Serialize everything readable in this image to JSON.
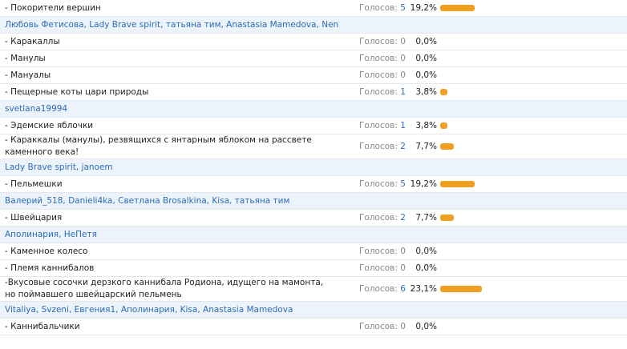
{
  "poll": {
    "votes_label": "Голосов:",
    "rows": [
      {
        "kind": "option",
        "text": "- Покорители вершин",
        "votes": 5,
        "percent": {
          "value": 19.2,
          "label": "19,2%"
        }
      },
      {
        "kind": "voters",
        "text": "Любовь Фетисова, Lady Brave spirit, татьяна тим, Anastasia Mamedova, Nen"
      },
      {
        "kind": "option",
        "text": "- Каракаллы",
        "votes": 0,
        "percent": {
          "value": 0,
          "label": "0,0%"
        }
      },
      {
        "kind": "option",
        "text": "- Манулы",
        "votes": 0,
        "percent": {
          "value": 0,
          "label": "0,0%"
        }
      },
      {
        "kind": "option",
        "text": "- Мануалы",
        "votes": 0,
        "percent": {
          "value": 0,
          "label": "0,0%"
        }
      },
      {
        "kind": "option",
        "text": "- Пещерные коты цари природы",
        "votes": 1,
        "percent": {
          "value": 3.8,
          "label": "3,8%"
        }
      },
      {
        "kind": "voters",
        "text": "svetlana19994"
      },
      {
        "kind": "option",
        "text": "- Эдемские яблочки",
        "votes": 1,
        "percent": {
          "value": 3.8,
          "label": "3,8%"
        }
      },
      {
        "kind": "option",
        "text": "- Караккалы (манулы), резвящихся с янтарным яблоком на рассвете каменного века!",
        "votes": 2,
        "percent": {
          "value": 7.7,
          "label": "7,7%"
        }
      },
      {
        "kind": "voters",
        "text": "Lady Brave spirit, janoem"
      },
      {
        "kind": "option",
        "text": "- Пельмешки",
        "votes": 5,
        "percent": {
          "value": 19.2,
          "label": "19,2%"
        }
      },
      {
        "kind": "voters",
        "text": "Валерий_518, Danieli4ka, Светлана Brosalkina, Kisa, татьяна тим"
      },
      {
        "kind": "option",
        "text": "- Швейцария",
        "votes": 2,
        "percent": {
          "value": 7.7,
          "label": "7,7%"
        }
      },
      {
        "kind": "voters",
        "text": "Аполинария, НеПетя"
      },
      {
        "kind": "option",
        "text": "- Каменное колесо",
        "votes": 0,
        "percent": {
          "value": 0,
          "label": "0,0%"
        }
      },
      {
        "kind": "option",
        "text": "- Племя каннибалов",
        "votes": 0,
        "percent": {
          "value": 0,
          "label": "0,0%"
        }
      },
      {
        "kind": "option",
        "text": "-Вкусовые сосочки дерзкого каннибала Родиона, идущего на мамонта, но поймавшего швейцарский пельмень",
        "votes": 6,
        "percent": {
          "value": 23.1,
          "label": "23,1%"
        }
      },
      {
        "kind": "voters",
        "text": "Vitaliya, Svzeni, Евгения1, Аполинария, Kisa, Anastasia Mamedova"
      },
      {
        "kind": "option",
        "text": "- Каннибальчики",
        "votes": 0,
        "percent": {
          "value": 0,
          "label": "0,0%"
        }
      }
    ]
  }
}
